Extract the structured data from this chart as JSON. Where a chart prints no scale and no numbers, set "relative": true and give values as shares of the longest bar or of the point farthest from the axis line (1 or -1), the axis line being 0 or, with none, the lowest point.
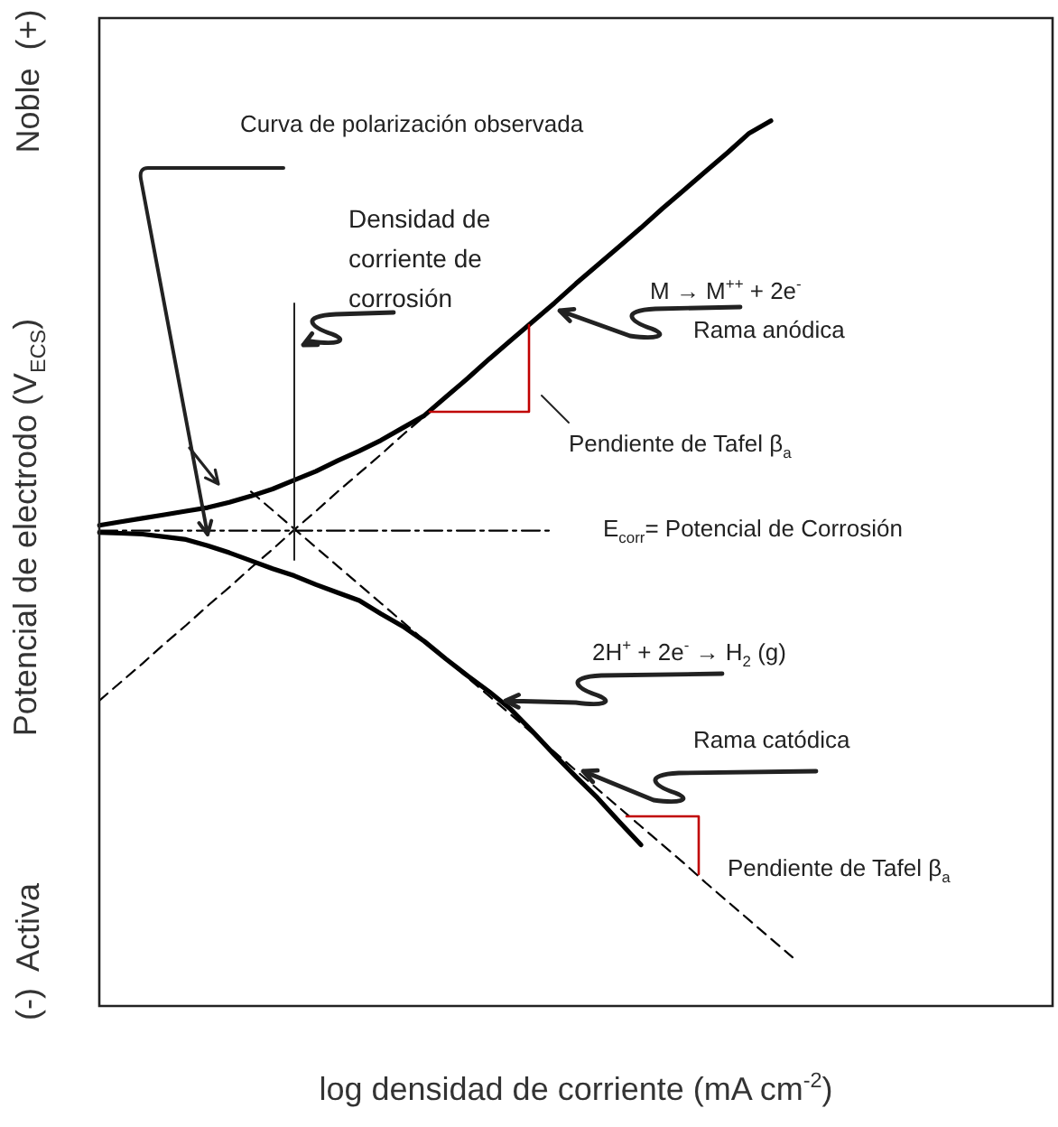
{
  "chart_data": {
    "type": "line",
    "relative": true,
    "legend": false,
    "marker": "none",
    "xlabel": "log densidad de corriente (mA cm$^{-2}$)",
    "ylabel": "Potencial de electrodo (V$_{ECS}$)",
    "categories": [
      null,
      null,
      null,
      null,
      null,
      null,
      null,
      null,
      null,
      null,
      null,
      null,
      null,
      null,
      null,
      null,
      null,
      null,
      null,
      null,
      null,
      null,
      null,
      null,
      null,
      null,
      null,
      null,
      null,
      null,
      null,
      null,
      null,
      null,
      null,
      null,
      null,
      null,
      null,
      null,
      null,
      null,
      null,
      null,
      null
    ],
    "series": [
      {
        "color": "#000000",
        "line_style": "solid",
        "values": [
          0.543,
          0.547,
          0.551,
          0.555,
          0.559,
          0.563,
          0.569,
          0.576,
          0.584,
          0.594,
          0.604,
          0.616,
          0.627,
          0.639,
          0.653,
          0.667,
          0.688,
          0.709,
          0.731,
          0.752,
          0.773,
          0.794,
          0.816,
          0.837,
          0.858,
          0.879,
          0.901,
          0.922,
          0.943,
          0.964,
          0.986,
          1,
          null,
          null,
          null,
          null,
          null,
          null,
          null,
          null,
          null,
          null,
          null,
          null,
          null
        ]
      },
      {
        "color": "#000000",
        "line_style": "solid",
        "values": [
          0.535,
          0.534,
          0.533,
          0.53,
          0.527,
          0.52,
          0.512,
          0.503,
          0.494,
          0.486,
          0.476,
          0.467,
          0.458,
          0.443,
          0.429,
          0.412,
          0.392,
          0.373,
          0.355,
          0.335,
          0.31,
          0.284,
          0.259,
          0.235,
          0.208,
          0.182,
          null,
          null,
          null,
          null,
          null,
          null,
          null,
          null,
          null,
          null,
          null,
          null,
          null,
          null,
          null,
          null,
          null,
          null,
          null
        ]
      },
      {
        "color": "#000000",
        "line_style": "dashed",
        "values": [
          0.345,
          0.366,
          0.387,
          0.409,
          0.43,
          0.452,
          0.473,
          0.495,
          0.516,
          0.538,
          0.559,
          0.581,
          0.602,
          0.623,
          0.645,
          0.666,
          null,
          null,
          null,
          null,
          null,
          null,
          null,
          null,
          null,
          null,
          null,
          null,
          null,
          null,
          null,
          null,
          null,
          null,
          null,
          null,
          null,
          null,
          null,
          null,
          null,
          null,
          null,
          null,
          null
        ]
      },
      {
        "color": "#000000",
        "line_style": "dashed",
        "values": [
          null,
          null,
          null,
          null,
          null,
          null,
          null,
          0.581,
          0.56,
          0.539,
          0.518,
          0.497,
          0.476,
          0.455,
          0.434,
          0.413,
          0.392,
          0.371,
          0.35,
          0.329,
          0.308,
          0.287,
          0.266,
          0.245,
          0.224,
          0.203,
          0.182,
          0.161,
          0.139,
          0.118,
          0.097,
          0.076,
          0.055,
          null,
          null,
          null,
          null,
          null,
          null,
          null,
          null,
          null,
          null,
          null,
          null
        ]
      },
      {
        "color": "#000000",
        "line_style": "dashdot",
        "values": [
          0.537,
          0.537,
          0.537,
          0.537,
          0.537,
          0.537,
          0.537,
          0.537,
          0.537,
          0.537,
          0.537,
          0.537,
          0.537,
          0.537,
          0.537,
          0.537,
          0.537,
          0.537,
          0.537,
          0.537,
          0.537,
          0.537,
          null,
          null,
          null,
          null,
          null,
          null,
          null,
          null,
          null,
          null,
          null,
          null,
          null,
          null,
          null,
          null,
          null,
          null,
          null,
          null,
          null,
          null,
          null
        ]
      }
    ],
    "annotations": [
      "Curva de polarización observada",
      "Densidad de corriente de corrosión",
      "M → M$^{++}$ + 2e$^{-}$",
      "Rama anódica",
      "Pendiente de Tafel β$_{a}$",
      "E$_{corr}$= Potencial de Corrosión",
      "2H$^{+}$ + 2e$^{-}$ → H$_{2}$ (g)",
      "Rama catódica",
      "Pendiente de Tafel β$_{a}$",
      "Noble  (+)",
      "(-)  Activa"
    ]
  }
}
